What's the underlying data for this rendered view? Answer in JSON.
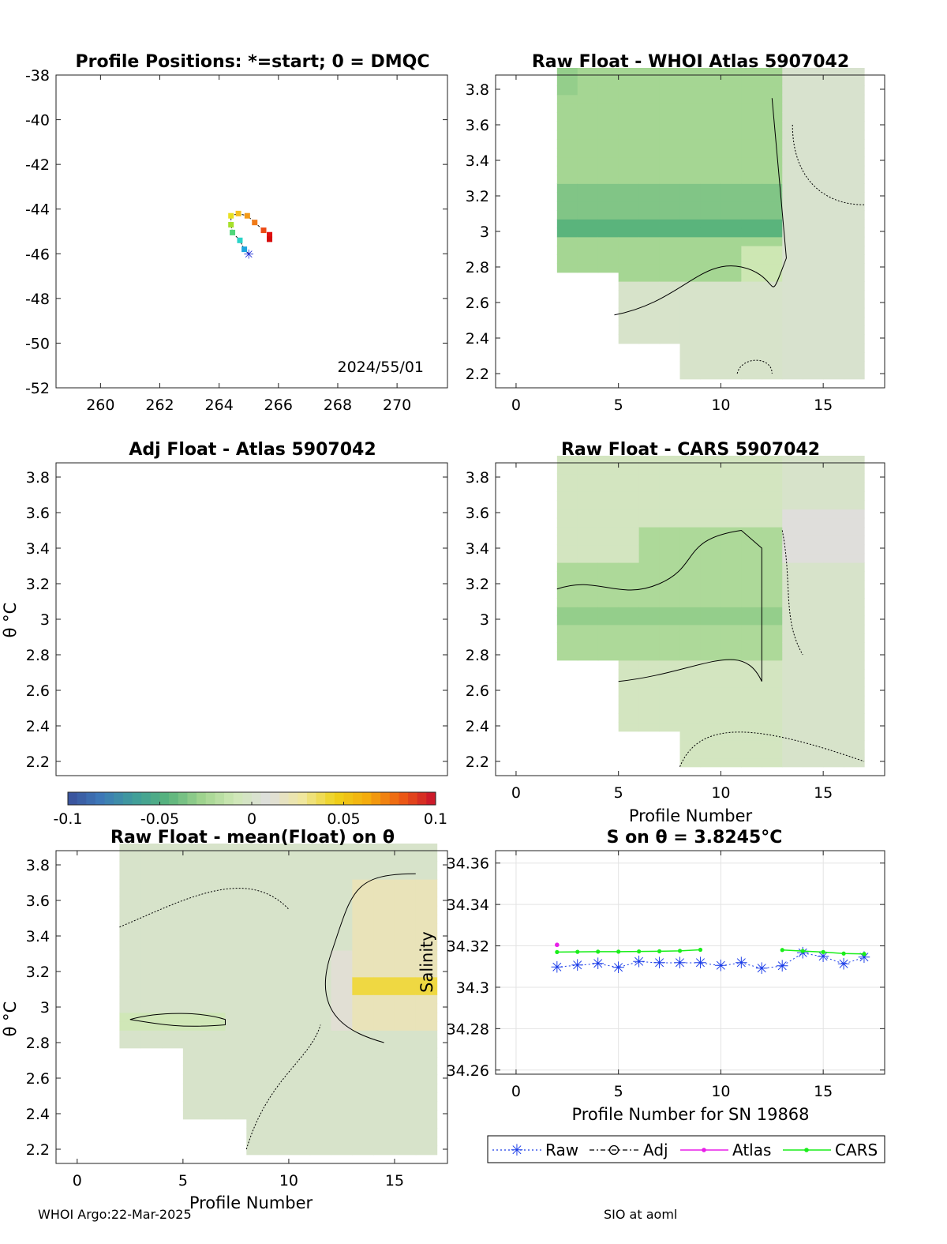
{
  "footer": {
    "left": "WHOI Argo:22-Mar-2025",
    "right": "SIO at aoml"
  },
  "colorbar": {
    "ticks": [
      "-0.1",
      "-0.05",
      "0",
      "0.05",
      "0.1"
    ],
    "range": [
      -0.1,
      0.1
    ],
    "colors": [
      "#3a4f9a",
      "#3d79b8",
      "#3f9e9a",
      "#58b37c",
      "#9fd38e",
      "#cfe8b5",
      "#dedede",
      "#f0e7a0",
      "#eed21a",
      "#f4a90c",
      "#ec5a14",
      "#c8102e"
    ]
  },
  "chart_data": [
    {
      "type": "scatter",
      "name": "positions",
      "title": "Profile Positions: *=start; 0 = DMQC",
      "annotation": "2024/55/01",
      "xlim": [
        258.5,
        271.7
      ],
      "ylim": [
        -52,
        -38
      ],
      "xticks": [
        "260",
        "262",
        "264",
        "266",
        "268",
        "270"
      ],
      "yticks": [
        "-38",
        "-40",
        "-42",
        "-44",
        "-46",
        "-48",
        "-50",
        "-52"
      ],
      "track": [
        {
          "lon": 265.0,
          "lat": -46.0,
          "color": "#1a2bd6"
        },
        {
          "lon": 264.85,
          "lat": -45.8,
          "color": "#1ea6e0"
        },
        {
          "lon": 264.7,
          "lat": -45.4,
          "color": "#2ad4c8"
        },
        {
          "lon": 264.45,
          "lat": -45.05,
          "color": "#4fd67a"
        },
        {
          "lon": 264.4,
          "lat": -44.7,
          "color": "#a6e02a"
        },
        {
          "lon": 264.4,
          "lat": -44.3,
          "color": "#e8e020"
        },
        {
          "lon": 264.65,
          "lat": -44.2,
          "color": "#f4c020"
        },
        {
          "lon": 264.95,
          "lat": -44.3,
          "color": "#f49a18"
        },
        {
          "lon": 265.2,
          "lat": -44.6,
          "color": "#f07a18"
        },
        {
          "lon": 265.5,
          "lat": -44.95,
          "color": "#ec4a14"
        },
        {
          "lon": 265.7,
          "lat": -45.15,
          "color": "#e01010"
        },
        {
          "lon": 265.7,
          "lat": -45.35,
          "color": "#d60a0a"
        }
      ]
    },
    {
      "type": "heatmap",
      "name": "whoi",
      "title": "Raw Float - WHOI Atlas  5907042",
      "xlim": [
        -1,
        18
      ],
      "ylim": [
        2.12,
        3.88
      ],
      "xticks": [
        "0",
        "5",
        "10",
        "15"
      ],
      "yticks": [
        "2.2",
        "2.4",
        "2.6",
        "2.8",
        "3",
        "3.2",
        "3.4",
        "3.6",
        "3.8"
      ],
      "note": "green (fresh) anomalies at profiles 2-12 above theta 2.7; grey elsewhere"
    },
    {
      "type": "heatmap",
      "name": "adj",
      "title": "Adj Float - Atlas  5907042",
      "ylabel": "θ °C",
      "xlim": [
        -1,
        18
      ],
      "ylim": [
        2.12,
        3.88
      ],
      "yticks": [
        "2.2",
        "2.4",
        "2.6",
        "2.8",
        "3",
        "3.2",
        "3.4",
        "3.6",
        "3.8"
      ]
    },
    {
      "type": "heatmap",
      "name": "cars",
      "title": "Raw Float - CARS  5907042",
      "xlabel": "Profile Number",
      "xlim": [
        -1,
        18
      ],
      "ylim": [
        2.12,
        3.88
      ],
      "xticks": [
        "0",
        "5",
        "10",
        "15"
      ],
      "yticks": [
        "2.2",
        "2.4",
        "2.6",
        "2.8",
        "3",
        "3.2",
        "3.4",
        "3.6",
        "3.8"
      ]
    },
    {
      "type": "heatmap",
      "name": "mean",
      "title": "Raw Float - mean(Float) on θ",
      "ylabel": "θ °C",
      "xlabel": "Profile Number",
      "xlim": [
        -1,
        17.5
      ],
      "ylim": [
        2.12,
        3.88
      ],
      "xticks": [
        "0",
        "5",
        "10",
        "15"
      ],
      "yticks": [
        "2.2",
        "2.4",
        "2.6",
        "2.8",
        "3",
        "3.2",
        "3.4",
        "3.6",
        "3.8"
      ],
      "note": "yellow (salty) anomaly at profiles 13-17 between theta 2.8 and 3.7"
    },
    {
      "type": "line",
      "name": "salinity",
      "title": "S on θ = 3.8245°C",
      "xlabel": "Profile Number for SN 19868",
      "ylabel": "Salinity",
      "xlim": [
        -1,
        18
      ],
      "ylim": [
        34.258,
        34.366
      ],
      "xticks": [
        "0",
        "5",
        "10",
        "15"
      ],
      "yticks": [
        "34.26",
        "34.28",
        "34.3",
        "34.32",
        "34.34",
        "34.36"
      ],
      "grid": true,
      "legend": [
        "Raw",
        "Adj",
        "Atlas",
        "CARS"
      ],
      "series": [
        {
          "name": "Raw",
          "color": "#1a3ce8",
          "x": [
            2,
            3,
            4,
            5,
            6,
            7,
            8,
            9,
            10,
            11,
            12,
            13,
            14,
            15,
            16,
            17
          ],
          "y": [
            34.3098,
            34.3106,
            34.3114,
            34.3096,
            34.3124,
            34.3118,
            34.3118,
            34.3118,
            34.3104,
            34.3118,
            34.3091,
            34.3103,
            34.3165,
            34.3148,
            34.3113,
            34.3144
          ]
        },
        {
          "name": "Atlas",
          "color": "#e81ee8",
          "x": [
            2
          ],
          "y": [
            34.3205
          ]
        },
        {
          "name": "CARS",
          "color": "#1aee1a",
          "x": [
            2,
            3,
            4,
            5,
            6,
            7,
            8,
            9,
            13,
            14,
            15,
            16,
            17
          ],
          "y": [
            34.317,
            34.3171,
            34.3172,
            34.3172,
            34.3173,
            34.3174,
            34.3176,
            34.3181,
            34.318,
            34.3175,
            34.317,
            34.3163,
            34.3161
          ]
        }
      ]
    }
  ]
}
